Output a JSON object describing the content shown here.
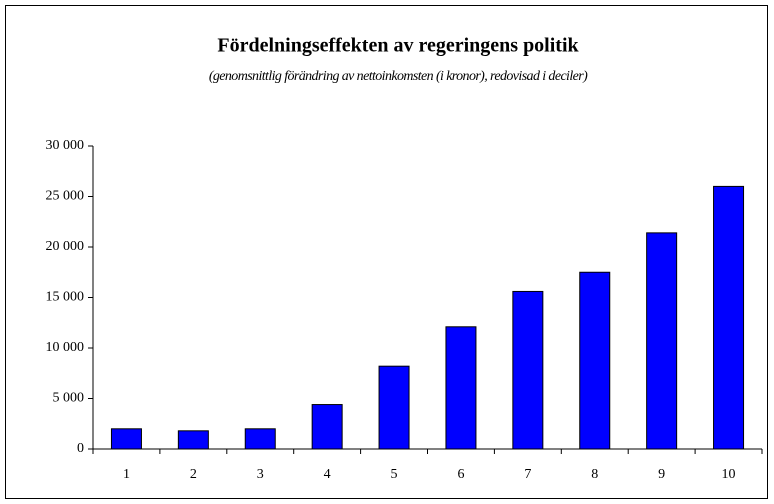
{
  "chart_data": {
    "type": "bar",
    "title": "Fördelningseffekten av regeringens politik",
    "subtitle": "(genomsnittlig förändring av nettoinkomsten (i kronor), redovisad i deciler)",
    "categories": [
      "1",
      "2",
      "3",
      "4",
      "5",
      "6",
      "7",
      "8",
      "9",
      "10"
    ],
    "values": [
      2000,
      1800,
      2000,
      4400,
      8200,
      12100,
      15600,
      17500,
      21400,
      26000
    ],
    "color": "#0000ff",
    "ylim": [
      0,
      30000
    ],
    "yticks": [
      0,
      {
        "value": 5000,
        "label": "5 000"
      },
      {
        "value": 10000,
        "label": "10 000"
      },
      {
        "value": 15000,
        "label": "15 000"
      },
      {
        "value": 20000,
        "label": "20 000"
      },
      {
        "value": 25000,
        "label": "25 000"
      },
      {
        "value": 30000,
        "label": "30 000"
      }
    ],
    "grid": false
  }
}
